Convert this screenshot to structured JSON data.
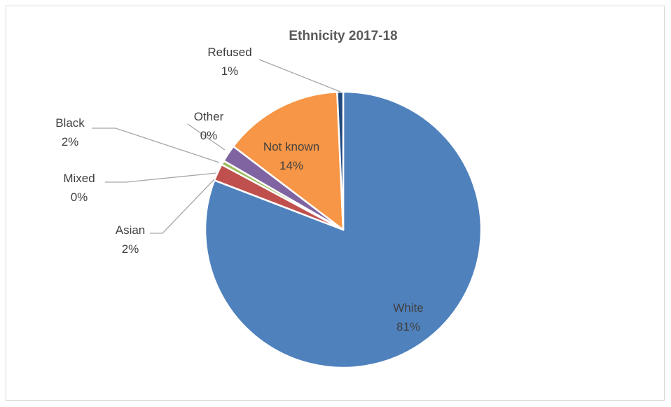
{
  "chart_data": {
    "type": "pie",
    "title": "Ethnicity 2017-18",
    "slices": [
      {
        "name": "White",
        "value": 81,
        "label": "81%",
        "color": "#4f81bd"
      },
      {
        "name": "Asian",
        "value": 2,
        "label": "2%",
        "color": "#c0504d"
      },
      {
        "name": "Mixed",
        "value": 0.5,
        "label": "0%",
        "color": "#9bbb59"
      },
      {
        "name": "Black",
        "value": 2,
        "label": "2%",
        "color": "#8064a2"
      },
      {
        "name": "Other",
        "value": 0,
        "label": "0%",
        "color": "#4bacc6"
      },
      {
        "name": "Not known",
        "value": 14,
        "label": "14%",
        "color": "#f79646"
      },
      {
        "name": "Refused",
        "value": 0.7,
        "label": "1%",
        "color": "#1f497d"
      }
    ],
    "legend": "none",
    "data_labels": "category-and-percent"
  }
}
